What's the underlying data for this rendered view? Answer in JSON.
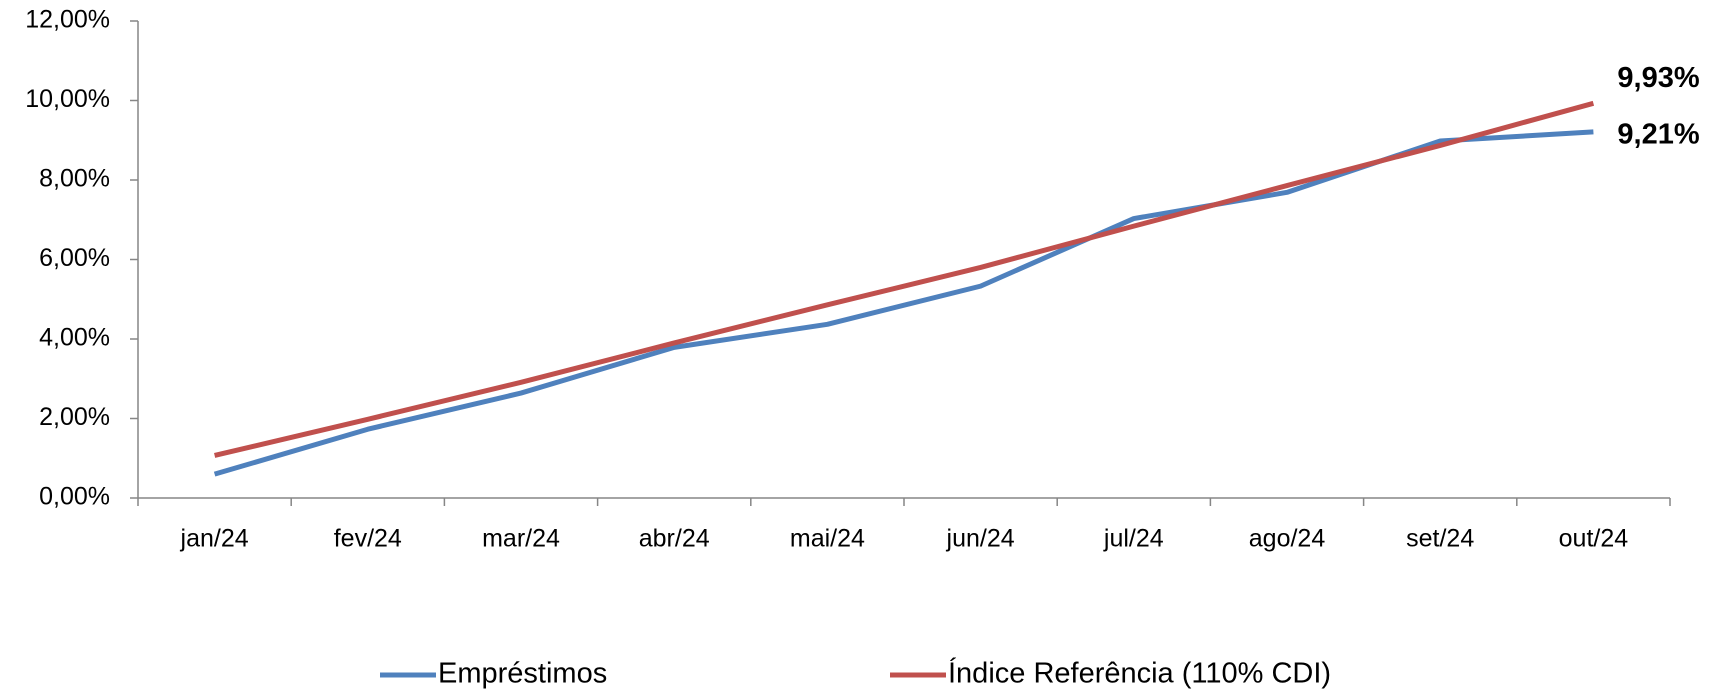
{
  "chart_data": {
    "type": "line",
    "categories": [
      "jan/24",
      "fev/24",
      "mar/24",
      "abr/24",
      "mai/24",
      "jun/24",
      "jul/24",
      "ago/24",
      "set/24",
      "out/24"
    ],
    "series": [
      {
        "name": "Empréstimos",
        "color": "#4f81bd",
        "label_color": "#1f497d",
        "values": [
          0.6,
          1.73,
          2.64,
          3.79,
          4.37,
          5.33,
          7.03,
          7.69,
          8.98,
          9.21
        ],
        "value_labels": [
          null,
          null,
          null,
          null,
          null,
          null,
          null,
          null,
          null,
          "9,21%"
        ]
      },
      {
        "name": "Índice Referência (110% CDI)",
        "color": "#c0504d",
        "label_color": "#ff0000",
        "values": [
          1.07,
          1.98,
          2.91,
          3.9,
          4.86,
          5.8,
          6.84,
          7.86,
          8.87,
          9.93
        ],
        "value_labels": [
          null,
          null,
          null,
          null,
          null,
          null,
          null,
          null,
          null,
          "9,93%"
        ]
      }
    ],
    "ylim": [
      0,
      12
    ],
    "yticks": [
      {
        "value": 0,
        "label": "0,00%"
      },
      {
        "value": 2,
        "label": "2,00%"
      },
      {
        "value": 4,
        "label": "4,00%"
      },
      {
        "value": 6,
        "label": "6,00%"
      },
      {
        "value": 8,
        "label": "8,00%"
      },
      {
        "value": 10,
        "label": "10,00%"
      },
      {
        "value": 12,
        "label": "12,00%"
      }
    ],
    "grid": false,
    "legend": "bottom"
  }
}
